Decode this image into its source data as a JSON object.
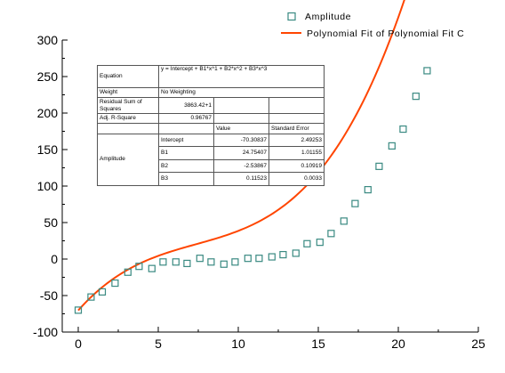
{
  "chart_data": {
    "type": "scatter",
    "xlim": [
      -1,
      25
    ],
    "ylim": [
      -100,
      300
    ],
    "x_ticks": [
      "0",
      "5",
      "10",
      "15",
      "20",
      "25"
    ],
    "y_ticks": [
      "-100",
      "-50",
      "0",
      "50",
      "100",
      "150",
      "200",
      "250",
      "300"
    ],
    "grid": false,
    "legend_position": "top-right",
    "series": [
      {
        "name": "Amplitude",
        "kind": "scatter",
        "marker": "open-square",
        "color": "#3a8a82",
        "x": [
          0,
          0.8,
          1.5,
          2.3,
          3.1,
          3.8,
          4.6,
          5.3,
          6.1,
          6.8,
          7.6,
          8.3,
          9.1,
          9.8,
          10.6,
          11.3,
          12.1,
          12.8,
          13.6,
          14.3,
          15.1,
          15.8,
          16.6,
          17.3,
          18.1,
          18.8,
          19.6,
          20.3,
          21.1,
          21.8
        ],
        "y": [
          -70,
          -52,
          -45,
          -33,
          -18,
          -10,
          -13,
          -4,
          -4,
          -6,
          1,
          -4,
          -7,
          -4,
          1,
          1,
          3,
          6,
          8,
          21,
          23,
          35,
          52,
          76,
          95,
          127,
          155,
          178,
          223,
          258
        ]
      },
      {
        "name": "Polynomial Fit of Polynomial Fit C",
        "kind": "line",
        "color": "#ff4500",
        "equation": {
          "intercept": -70.30837,
          "B1": 24.75407,
          "B2": -2.53867,
          "B3": 0.11523
        },
        "x_range": [
          0,
          21.8
        ]
      }
    ]
  },
  "stats_table": {
    "equation_label": "Equation",
    "equation_value": "y = Intercept + B1*x^1 + B2*x^2 + B3*x^3",
    "weight_label": "Weight",
    "weight_value": "No Weighting",
    "rss_label": "Residual Sum of Squares",
    "rss_value": "3863.42+1",
    "adjr_label": "Adj. R-Square",
    "adjr_value": "0.96767",
    "value_header": "Value",
    "stderr_header": "Standard Error",
    "group_label": "Amplitude",
    "rows": [
      {
        "param": "Intercept",
        "value": "-70.30837",
        "error": "2.49253"
      },
      {
        "param": "B1",
        "value": "24.75407",
        "error": "1.01155"
      },
      {
        "param": "B2",
        "value": "-2.53867",
        "error": "0.10919"
      },
      {
        "param": "B3",
        "value": "0.11523",
        "error": "0.0033"
      }
    ]
  }
}
